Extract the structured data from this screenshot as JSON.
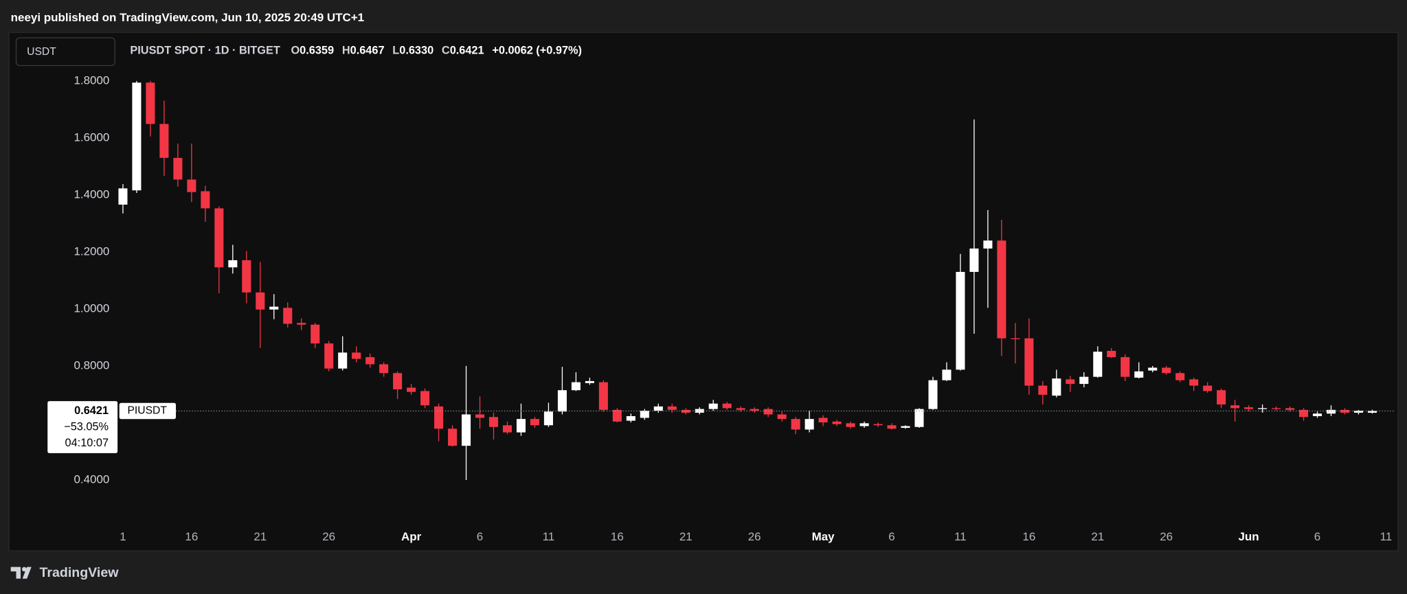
{
  "header": {
    "title": "neeyi published on TradingView.com, Jun 10, 2025 20:49 UTC+1"
  },
  "toolbar": {
    "currency": "USDT"
  },
  "legend": {
    "symbol": "PIUSDT SPOT · 1D · BITGET",
    "o_label": "O",
    "open": "0.6359",
    "h_label": "H",
    "high": "0.6467",
    "l_label": "L",
    "low": "0.6330",
    "c_label": "C",
    "close": "0.6421",
    "change": "+0.0062 (+0.97%)"
  },
  "price_label": {
    "price": "0.6421",
    "change": "−53.05%",
    "countdown": "04:10:07",
    "symbol": "PIUSDT"
  },
  "footer": {
    "brand": "TradingView"
  },
  "chart_data": {
    "type": "candlestick",
    "up_color": "#ffffff",
    "down_color": "#f23645",
    "ylim": [
      0.227,
      1.967
    ],
    "yticks": [
      {
        "value": 1.8,
        "label": "1.8000"
      },
      {
        "value": 1.6,
        "label": "1.6000"
      },
      {
        "value": 1.4,
        "label": "1.4000"
      },
      {
        "value": 1.2,
        "label": "1.2000"
      },
      {
        "value": 1.0,
        "label": "1.0000"
      },
      {
        "value": 0.8,
        "label": "0.8000"
      },
      {
        "value": 0.4,
        "label": "0.4000"
      }
    ],
    "categories": [
      "1",
      null,
      null,
      null,
      null,
      "16",
      null,
      null,
      null,
      null,
      "21",
      null,
      null,
      null,
      null,
      "26",
      null,
      null,
      null,
      null,
      null,
      "Apr",
      null,
      null,
      null,
      null,
      "6",
      null,
      null,
      null,
      null,
      "11",
      null,
      null,
      null,
      null,
      "16",
      null,
      null,
      null,
      null,
      "21",
      null,
      null,
      null,
      null,
      "26",
      null,
      null,
      null,
      null,
      "May",
      null,
      null,
      null,
      null,
      "6",
      null,
      null,
      null,
      null,
      "11",
      null,
      null,
      null,
      null,
      "16",
      null,
      null,
      null,
      null,
      "21",
      null,
      null,
      null,
      null,
      "26",
      null,
      null,
      null,
      null,
      null,
      "Jun",
      null,
      null,
      null,
      null,
      "6",
      null,
      null,
      null,
      null,
      "11"
    ],
    "open": [
      1.366,
      1.416,
      1.794,
      1.649,
      1.53,
      1.454,
      1.413,
      1.353,
      1.146,
      1.171,
      1.058,
      0.998,
      1.004,
      0.951,
      0.945,
      0.879,
      0.791,
      0.847,
      0.831,
      0.806,
      0.775,
      0.724,
      0.712,
      0.658,
      0.58,
      0.52,
      0.63,
      0.621,
      0.592,
      0.567,
      0.614,
      0.592,
      0.64,
      0.715,
      0.74,
      0.743,
      0.646,
      0.608,
      0.618,
      0.643,
      0.658,
      0.646,
      0.636,
      0.649,
      0.668,
      0.652,
      0.649,
      0.649,
      0.63,
      0.614,
      0.577,
      0.618,
      0.605,
      0.599,
      0.589,
      0.596,
      0.592,
      0.583,
      0.586,
      0.649,
      0.75,
      0.787,
      1.13,
      1.212,
      1.24,
      0.897,
      0.897,
      0.731,
      0.696,
      0.753,
      0.737,
      0.762,
      0.853,
      0.831,
      0.759,
      0.784,
      0.794,
      0.775,
      0.753,
      0.731,
      0.715,
      0.662,
      0.655,
      0.649,
      0.652,
      0.652,
      0.646,
      0.624,
      0.633,
      0.646,
      0.636,
      0.6359,
      null
    ],
    "high": [
      1.438,
      1.8,
      1.8,
      1.731,
      1.58,
      1.58,
      1.432,
      1.36,
      1.225,
      1.203,
      1.165,
      1.052,
      1.023,
      0.967,
      0.951,
      0.888,
      0.904,
      0.869,
      0.844,
      0.813,
      0.781,
      0.737,
      0.721,
      0.668,
      0.592,
      0.8,
      0.693,
      0.636,
      0.605,
      0.668,
      0.621,
      0.671,
      0.797,
      0.778,
      0.759,
      0.75,
      0.652,
      0.633,
      0.649,
      0.668,
      0.668,
      0.652,
      0.655,
      0.681,
      0.674,
      0.658,
      0.655,
      0.655,
      0.64,
      0.621,
      0.643,
      0.627,
      0.611,
      0.605,
      0.605,
      0.602,
      0.599,
      0.592,
      0.652,
      0.762,
      0.813,
      1.193,
      1.665,
      1.347,
      1.313,
      0.951,
      0.967,
      0.747,
      0.787,
      0.765,
      0.778,
      0.869,
      0.863,
      0.841,
      0.813,
      0.8,
      0.8,
      0.781,
      0.759,
      0.743,
      0.721,
      0.681,
      0.662,
      0.665,
      0.658,
      0.658,
      0.652,
      0.64,
      0.662,
      0.652,
      0.646,
      0.6467,
      null
    ],
    "low": [
      1.335,
      1.407,
      1.605,
      1.467,
      1.429,
      1.375,
      1.306,
      1.055,
      1.124,
      1.02,
      0.863,
      0.964,
      0.935,
      0.926,
      0.863,
      0.781,
      0.784,
      0.813,
      0.794,
      0.762,
      0.684,
      0.699,
      0.652,
      0.536,
      0.517,
      0.4,
      0.58,
      0.542,
      0.561,
      0.555,
      0.583,
      0.586,
      0.63,
      0.712,
      0.734,
      0.64,
      0.602,
      0.602,
      0.611,
      0.636,
      0.636,
      0.63,
      0.63,
      0.643,
      0.646,
      0.64,
      0.636,
      0.621,
      0.605,
      0.561,
      0.567,
      0.589,
      0.589,
      0.58,
      0.583,
      0.586,
      0.577,
      0.58,
      0.583,
      0.646,
      0.747,
      0.784,
      0.913,
      1.004,
      0.835,
      0.809,
      0.699,
      0.665,
      0.69,
      0.709,
      0.725,
      0.759,
      0.828,
      0.747,
      0.756,
      0.778,
      0.769,
      0.743,
      0.712,
      0.706,
      0.652,
      0.605,
      0.64,
      0.636,
      0.643,
      0.64,
      0.608,
      0.618,
      0.624,
      0.63,
      0.63,
      0.633,
      null
    ],
    "close": [
      1.423,
      1.794,
      1.649,
      1.53,
      1.454,
      1.41,
      1.353,
      1.146,
      1.171,
      1.058,
      0.998,
      1.008,
      0.948,
      0.945,
      0.879,
      0.791,
      0.847,
      0.825,
      0.806,
      0.775,
      0.718,
      0.709,
      0.662,
      0.58,
      0.52,
      0.63,
      0.618,
      0.586,
      0.567,
      0.614,
      0.592,
      0.64,
      0.715,
      0.743,
      0.747,
      0.646,
      0.605,
      0.624,
      0.643,
      0.658,
      0.646,
      0.636,
      0.649,
      0.668,
      0.652,
      0.646,
      0.643,
      0.63,
      0.614,
      0.577,
      0.614,
      0.602,
      0.596,
      0.586,
      0.599,
      0.592,
      0.58,
      0.589,
      0.649,
      0.75,
      0.787,
      1.13,
      1.212,
      1.24,
      0.897,
      0.894,
      0.731,
      0.699,
      0.756,
      0.737,
      0.762,
      0.85,
      0.831,
      0.762,
      0.781,
      0.794,
      0.775,
      0.75,
      0.731,
      0.712,
      0.665,
      0.652,
      0.649,
      0.652,
      0.649,
      0.646,
      0.621,
      0.633,
      0.646,
      0.636,
      0.643,
      0.6421,
      null
    ]
  }
}
